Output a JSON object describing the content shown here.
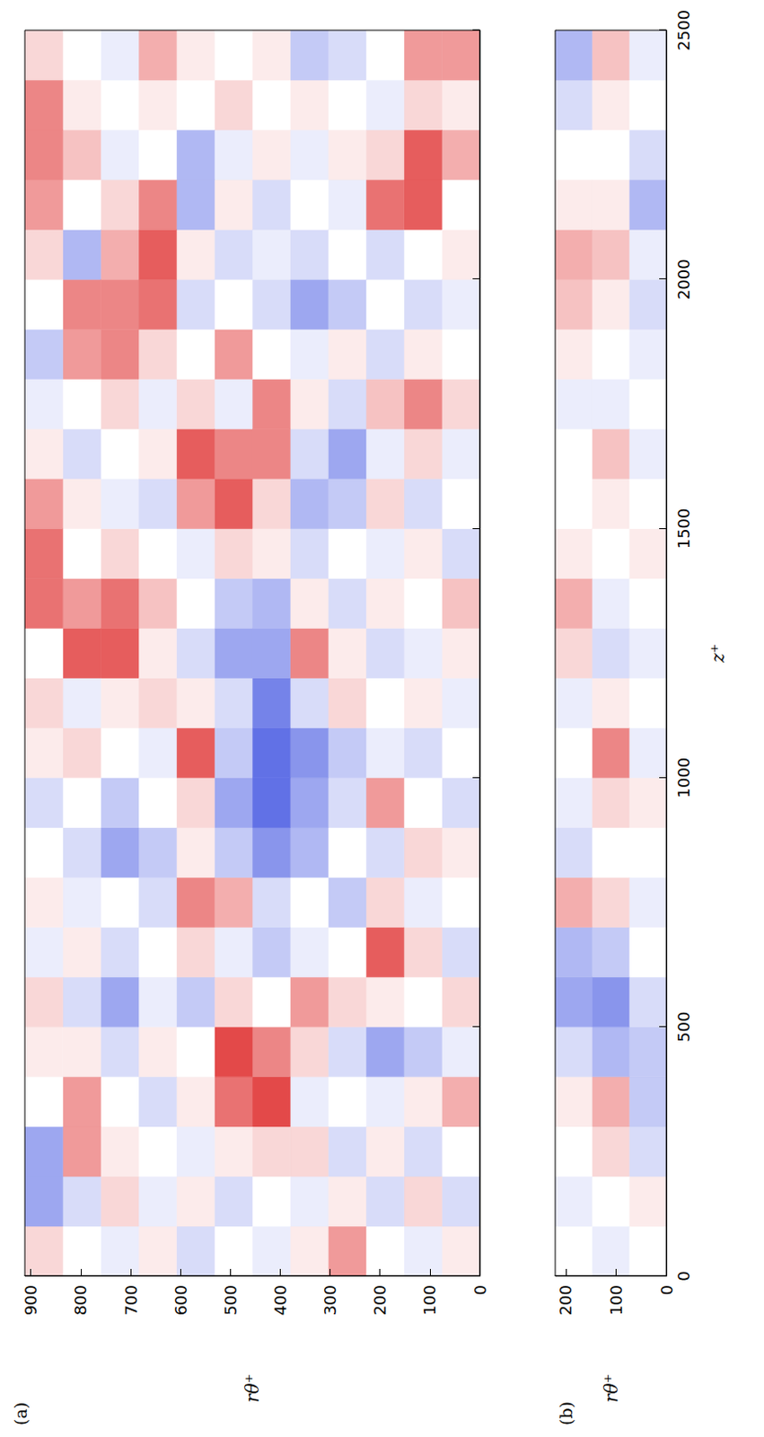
{
  "chart_data": [
    {
      "type": "heatmap",
      "title": "(a)",
      "y_label": "rθ⁺",
      "tick_labels": "y",
      "xlim": [
        0,
        2500
      ],
      "xticks": [
        0,
        500,
        1000,
        1500,
        2000,
        2500
      ],
      "ylim": [
        0,
        912
      ],
      "yticks": [
        0,
        100,
        200,
        300,
        400,
        500,
        600,
        700,
        800,
        900
      ],
      "x_edges": [
        0,
        100,
        200,
        300,
        400,
        500,
        600,
        700,
        800,
        900,
        1000,
        1100,
        1200,
        1300,
        1400,
        1500,
        1600,
        1700,
        1800,
        1900,
        2000,
        2100,
        2200,
        2300,
        2400,
        2500
      ],
      "y_edges": [
        0,
        76,
        152,
        228,
        304,
        380,
        456,
        532,
        608,
        684,
        760,
        836,
        912
      ],
      "color_range": [
        -1,
        1
      ],
      "colors": [
        "#3a4ee0",
        "#ffffff",
        "#e03535"
      ],
      "cells": [
        [
          0.1,
          -0.2,
          0,
          0.4,
          -0.1,
          0.2,
          -0.2,
          0,
          0.1,
          -0.2,
          0,
          -0.1,
          0.1,
          0.3,
          -0.2,
          0,
          -0.1,
          0.2,
          0,
          -0.1,
          0.1,
          0,
          0.4,
          0.1,
          0.5
        ],
        [
          -0.1,
          0.2,
          -0.2,
          0.1,
          -0.3,
          0,
          0.2,
          -0.1,
          0.2,
          0,
          -0.2,
          0.1,
          -0.1,
          0,
          0.1,
          -0.2,
          0.2,
          0.6,
          0.1,
          -0.2,
          0,
          0.8,
          0.8,
          0.2,
          0.5
        ],
        [
          0,
          -0.2,
          0.1,
          -0.1,
          -0.5,
          0.1,
          0.8,
          0.2,
          -0.2,
          0.5,
          -0.1,
          0,
          -0.2,
          0.1,
          -0.1,
          0.2,
          -0.1,
          0.3,
          -0.2,
          0,
          -0.2,
          0.7,
          0.2,
          -0.1,
          0
        ],
        [
          0.5,
          0.1,
          -0.2,
          0,
          -0.2,
          0.2,
          0,
          -0.3,
          0,
          -0.2,
          -0.3,
          0.2,
          0.1,
          -0.2,
          0,
          -0.3,
          -0.5,
          -0.2,
          0.1,
          -0.3,
          0,
          -0.1,
          0.1,
          0,
          -0.2
        ],
        [
          0.1,
          -0.1,
          0.2,
          -0.1,
          0.2,
          0.5,
          -0.1,
          0,
          -0.4,
          -0.5,
          -0.6,
          -0.2,
          0.6,
          0.1,
          -0.2,
          -0.4,
          -0.2,
          0.1,
          -0.1,
          -0.5,
          -0.2,
          0,
          -0.1,
          0.1,
          -0.3
        ],
        [
          -0.1,
          0,
          0.2,
          0.9,
          0.6,
          0,
          -0.3,
          -0.2,
          -0.6,
          -0.8,
          -0.8,
          -0.7,
          -0.5,
          -0.4,
          0.1,
          0.2,
          0.6,
          0.6,
          0,
          -0.2,
          -0.1,
          -0.2,
          0.1,
          0,
          0.1
        ],
        [
          0,
          -0.2,
          0.1,
          0.7,
          0.9,
          0.2,
          -0.1,
          0.4,
          -0.3,
          -0.5,
          -0.3,
          -0.2,
          -0.5,
          -0.3,
          0.2,
          0.8,
          0.6,
          -0.1,
          0.5,
          0,
          -0.2,
          0.1,
          -0.1,
          0.2,
          0
        ],
        [
          -0.2,
          0.1,
          -0.1,
          0.1,
          0,
          -0.3,
          0.2,
          0.6,
          0.1,
          0.2,
          0.8,
          0.1,
          -0.2,
          0,
          -0.1,
          0.5,
          0.8,
          0.2,
          0,
          -0.2,
          0.1,
          -0.4,
          -0.4,
          0,
          0.1
        ],
        [
          0.1,
          -0.1,
          0,
          -0.2,
          0.1,
          -0.1,
          0,
          -0.2,
          -0.3,
          0,
          -0.1,
          0.2,
          0.1,
          0.3,
          0,
          -0.2,
          0.1,
          -0.1,
          0.2,
          0.7,
          0.8,
          0.6,
          0,
          0.1,
          0.4
        ],
        [
          -0.1,
          0.2,
          0.1,
          0,
          -0.2,
          -0.5,
          -0.2,
          0,
          -0.5,
          -0.3,
          0,
          0.1,
          0.8,
          0.7,
          0.2,
          -0.1,
          0,
          0.2,
          0.6,
          0.6,
          0.4,
          0.2,
          -0.1,
          0,
          -0.1
        ],
        [
          0,
          -0.2,
          0.5,
          0.5,
          0.1,
          -0.2,
          0.1,
          -0.1,
          -0.2,
          0,
          0.2,
          -0.1,
          0.8,
          0.5,
          0,
          0.1,
          -0.2,
          0,
          0.5,
          0.6,
          -0.4,
          0,
          0.3,
          0.1,
          0
        ],
        [
          0.2,
          -0.5,
          -0.5,
          0,
          0.1,
          0.2,
          -0.1,
          0.1,
          0,
          -0.2,
          0.1,
          0.2,
          0,
          0.7,
          0.7,
          0.5,
          0.1,
          -0.1,
          -0.3,
          0,
          0.2,
          0.5,
          0.6,
          0.6,
          0.2
        ]
      ]
    },
    {
      "type": "heatmap",
      "title": "(b)",
      "x_label": "z⁺",
      "y_label": "rθ⁺",
      "xlim": [
        0,
        2500
      ],
      "xticks": [
        0,
        500,
        1000,
        1500,
        2000,
        2500
      ],
      "ylim": [
        0,
        221
      ],
      "yticks": [
        0,
        100,
        200
      ],
      "x_edges": [
        0,
        100,
        200,
        300,
        400,
        500,
        600,
        700,
        800,
        900,
        1000,
        1100,
        1200,
        1300,
        1400,
        1500,
        1600,
        1700,
        1800,
        1900,
        2000,
        2100,
        2200,
        2300,
        2400,
        2500
      ],
      "y_edges": [
        0,
        74,
        148,
        221
      ],
      "color_range": [
        -1,
        1
      ],
      "colors": [
        "#3a4ee0",
        "#ffffff",
        "#e03535"
      ],
      "cells": [
        [
          0,
          0.1,
          -0.2,
          -0.3,
          -0.3,
          -0.2,
          0,
          -0.1,
          0,
          0.1,
          -0.1,
          0,
          -0.1,
          0,
          0.1,
          0,
          -0.1,
          0,
          -0.1,
          -0.2,
          -0.1,
          -0.4,
          -0.2,
          0,
          -0.1
        ],
        [
          -0.1,
          0,
          0.2,
          0.4,
          -0.4,
          -0.6,
          -0.3,
          0.2,
          0,
          0.2,
          0.6,
          0.1,
          -0.2,
          -0.1,
          0,
          0.1,
          0.3,
          -0.1,
          0,
          0.1,
          0.3,
          0.1,
          0,
          0.1,
          0.3
        ],
        [
          0,
          -0.1,
          0,
          0.1,
          -0.2,
          -0.5,
          -0.4,
          0.4,
          -0.2,
          -0.1,
          0,
          -0.1,
          0.2,
          0.4,
          0.1,
          0,
          0,
          -0.1,
          0.1,
          0.3,
          0.4,
          0.1,
          0,
          -0.2,
          -0.4
        ]
      ]
    }
  ]
}
